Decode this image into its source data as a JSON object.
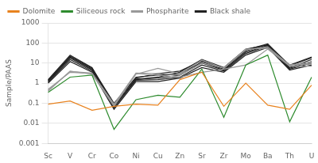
{
  "chart_data": {
    "type": "line",
    "categories": [
      "Sc",
      "V",
      "Cr",
      "Co",
      "Ni",
      "Cu",
      "Zn",
      "Sr",
      "Zr",
      "Mo",
      "Ba",
      "Th",
      "U"
    ],
    "ylabel": "Sample/PAAS",
    "log": "y",
    "ylim": [
      0.001,
      1000
    ],
    "yticks": [
      0.001,
      0.01,
      0.1,
      1,
      10,
      100,
      1000
    ],
    "grid": true,
    "legend": "upper left",
    "series": [
      {
        "name": "Dolomite",
        "color": "#e8821e",
        "values": [
          0.09,
          0.13,
          0.045,
          0.07,
          0.09,
          0.08,
          1.5,
          3.5,
          0.07,
          1.0,
          0.08,
          0.05,
          0.8
        ]
      },
      {
        "name": "Siliceous rock",
        "color": "#2e8b2e",
        "values": [
          0.35,
          2.0,
          2.5,
          0.005,
          0.15,
          0.25,
          0.2,
          5.0,
          0.02,
          8.0,
          25.0,
          0.012,
          2.0
        ]
      },
      {
        "name": "Phospharite",
        "color": "#999999",
        "values": [
          0.5,
          3.5,
          3.0,
          0.08,
          3.0,
          2.5,
          2.0,
          3.5,
          5.0,
          8.0,
          50.0,
          7.0,
          7.0
        ]
      },
      {
        "name": "Phospharite",
        "color": "#999999",
        "values": [
          0.4,
          4.0,
          2.8,
          0.07,
          2.8,
          5.5,
          3.0,
          14.0,
          5.5,
          45.0,
          65.0,
          7.8,
          9.0
        ]
      },
      {
        "name": "Phospharite",
        "color": "#999999",
        "values": [
          0.45,
          3.8,
          3.2,
          0.09,
          3.2,
          3.0,
          2.5,
          10.0,
          5.8,
          50.0,
          55.0,
          8.0,
          11.0
        ]
      },
      {
        "name": "Black shale",
        "color": "#222222",
        "values": [
          1.5,
          25.0,
          6.0,
          0.08,
          1.5,
          2.0,
          3.5,
          15.0,
          6.0,
          50.0,
          80.0,
          8.0,
          20.0
        ]
      },
      {
        "name": "Black shale",
        "color": "#222222",
        "values": [
          1.4,
          22.0,
          5.5,
          0.1,
          1.8,
          3.0,
          4.0,
          13.0,
          5.5,
          45.0,
          90.0,
          7.5,
          18.0
        ]
      },
      {
        "name": "Black shale",
        "color": "#222222",
        "values": [
          1.3,
          20.0,
          5.0,
          0.09,
          2.0,
          2.5,
          3.0,
          11.0,
          5.0,
          40.0,
          85.0,
          6.0,
          15.0
        ]
      },
      {
        "name": "Black shale",
        "color": "#222222",
        "values": [
          1.2,
          18.0,
          4.5,
          0.07,
          1.6,
          1.8,
          2.5,
          10.0,
          4.5,
          35.0,
          75.0,
          5.5,
          12.0
        ]
      },
      {
        "name": "Black shale",
        "color": "#222222",
        "values": [
          1.1,
          15.0,
          4.0,
          0.06,
          1.4,
          1.5,
          2.0,
          8.0,
          4.0,
          30.0,
          70.0,
          5.0,
          10.0
        ]
      },
      {
        "name": "Black shale",
        "color": "#222222",
        "values": [
          1.0,
          12.0,
          3.5,
          0.05,
          1.2,
          1.2,
          1.8,
          6.0,
          3.5,
          25.0,
          60.0,
          4.5,
          8.0
        ]
      }
    ]
  }
}
